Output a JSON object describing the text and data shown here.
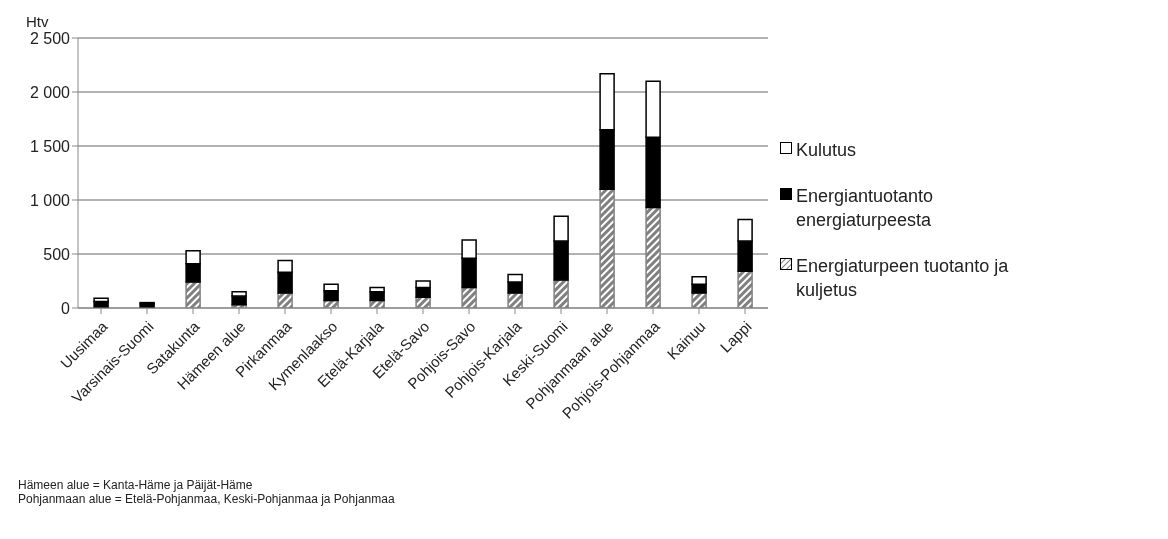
{
  "chart_data": {
    "type": "bar",
    "stacked": true,
    "ylabel": "Htv",
    "categories": [
      "Uusimaa",
      "Varsinais-Suomi",
      "Satakunta",
      "Hämeen alue",
      "Pirkanmaa",
      "Kymenlaakso",
      "Etelä-Karjala",
      "Etelä-Savo",
      "Pohjois-Savo",
      "Pohjois-Karjala",
      "Keski-Suomi",
      "Pohjanmaan alue",
      "Pohjois-Pohjanmaa",
      "Kainuu",
      "Lappi"
    ],
    "series": [
      {
        "name": "Energiaturpeen tuotanto ja kuljetus",
        "color": "#808080",
        "values": [
          0,
          0,
          240,
          30,
          140,
          70,
          70,
          100,
          190,
          140,
          260,
          1100,
          930,
          140,
          340
        ]
      },
      {
        "name": "Energiantuotanto energiaturpeesta",
        "color": "#000000",
        "values": [
          60,
          40,
          170,
          80,
          190,
          90,
          80,
          90,
          270,
          100,
          360,
          550,
          650,
          80,
          280
        ]
      },
      {
        "name": "Kulutus",
        "color": "#ffffff",
        "values": [
          30,
          10,
          120,
          40,
          110,
          60,
          40,
          60,
          170,
          70,
          230,
          520,
          520,
          70,
          200
        ]
      }
    ],
    "ylim": [
      0,
      2500
    ],
    "yticks": [
      0,
      {
        "value": 500,
        "label": "500"
      },
      {
        "value": 1000,
        "label": "1 000"
      },
      {
        "value": 1500,
        "label": "1 500"
      },
      {
        "value": 2000,
        "label": "2 000"
      },
      {
        "value": 2500,
        "label": "2 500"
      }
    ],
    "grid": "y",
    "legend": "right",
    "annotations": [
      "Hämeen alue = Kanta-Häme ja Päijät-Häme",
      "Pohjanmaan alue = Etelä-Pohjanmaa, Keski-Pohjanmaa ja Pohjanmaa"
    ]
  }
}
